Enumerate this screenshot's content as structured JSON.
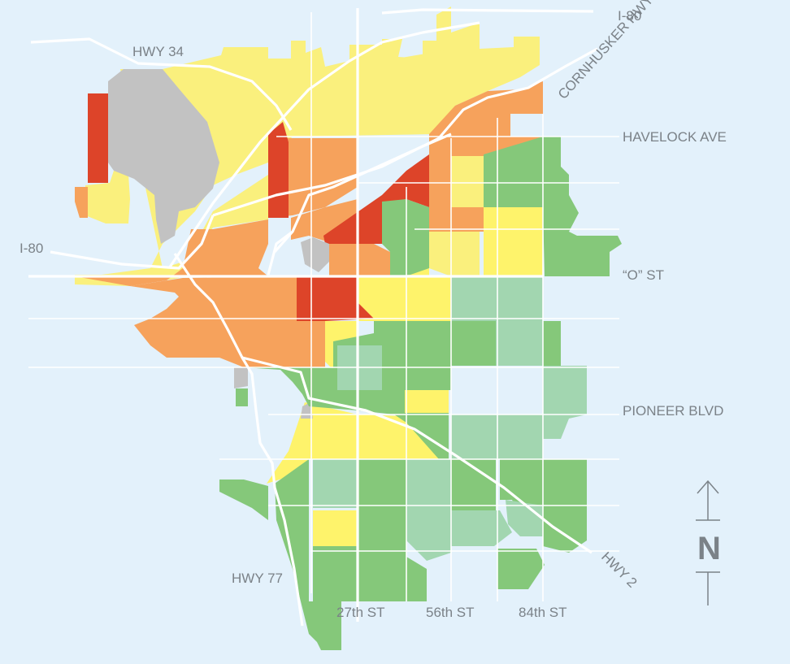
{
  "colors": {
    "background": "#e3f1fb",
    "red": "#dd4429",
    "orange": "#f6a25c",
    "yellow": "#fef36b",
    "pale_yellow": "#faf07d",
    "green": "#85c87a",
    "pale_green": "#a2d6b0",
    "gray": "#c2c2c2",
    "road": "#ffffff",
    "label": "#7b8288"
  },
  "labels": {
    "hwy34": "HWY 34",
    "i80_top": "I-80",
    "cornhusker": "CORNHUSKER HWY",
    "havelock": "HAVELOCK AVE",
    "i80_left": "I-80",
    "o_st": "“O” ST",
    "pioneer": "PIONEER BLVD",
    "hwy77": "HWY 77",
    "hwy2": "HWY 2",
    "st27": "27th ST",
    "st56": "56th ST",
    "st84": "84th ST"
  },
  "compass": {
    "letter": "N",
    "icon": "north-arrow-icon"
  }
}
